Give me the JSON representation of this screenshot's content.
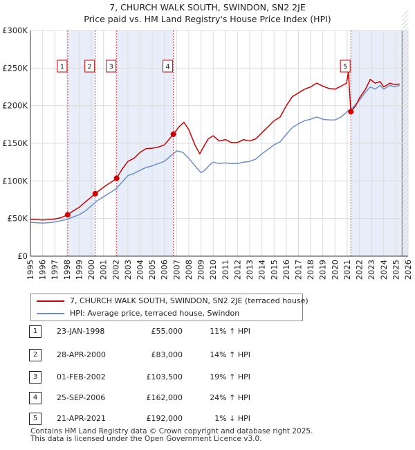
{
  "chart_data": {
    "type": "line",
    "title": "7, CHURCH WALK SOUTH, SWINDON, SN2 2JE",
    "subtitle": "Price paid vs. HM Land Registry's House Price Index (HPI)",
    "xlabel": "",
    "ylabel": "",
    "xlim": [
      1995,
      2026
    ],
    "ylim": [
      0,
      300000
    ],
    "grid": true,
    "y_ticks": [
      {
        "value": 0,
        "label": "£0"
      },
      {
        "value": 50000,
        "label": "£50K"
      },
      {
        "value": 100000,
        "label": "£100K"
      },
      {
        "value": 150000,
        "label": "£150K"
      },
      {
        "value": 200000,
        "label": "£200K"
      },
      {
        "value": 250000,
        "label": "£250K"
      },
      {
        "value": 300000,
        "label": "£300K"
      }
    ],
    "x_ticks": [
      "1995",
      "1996",
      "1997",
      "1998",
      "1999",
      "2000",
      "2001",
      "2002",
      "2003",
      "2004",
      "2005",
      "2006",
      "2007",
      "2008",
      "2009",
      "2010",
      "2011",
      "2012",
      "2013",
      "2014",
      "2015",
      "2016",
      "2017",
      "2018",
      "2019",
      "2020",
      "2021",
      "2022",
      "2023",
      "2024",
      "2025",
      "2026"
    ],
    "series": [
      {
        "name": "7, CHURCH WALK SOUTH, SWINDON, SN2 2JE (terraced house)",
        "color": "#cc0000",
        "x": [
          1995.0,
          1995.5,
          1996.0,
          1996.5,
          1997.0,
          1997.5,
          1998.06,
          1998.5,
          1999.0,
          1999.5,
          2000.32,
          2000.7,
          2001.2,
          2001.6,
          2002.08,
          2002.5,
          2003.0,
          2003.5,
          2004.0,
          2004.5,
          2005.0,
          2005.5,
          2006.0,
          2006.73,
          2007.2,
          2007.6,
          2008.0,
          2008.5,
          2008.9,
          2009.2,
          2009.6,
          2010.0,
          2010.5,
          2011.0,
          2011.5,
          2012.0,
          2012.5,
          2013.0,
          2013.5,
          2014.0,
          2014.5,
          2015.0,
          2015.5,
          2016.0,
          2016.5,
          2017.0,
          2017.5,
          2018.0,
          2018.5,
          2019.0,
          2019.5,
          2020.0,
          2020.5,
          2020.95,
          2021.1,
          2021.3,
          2021.7,
          2022.0,
          2022.5,
          2022.9,
          2023.3,
          2023.7,
          2024.0,
          2024.5,
          2024.9,
          2025.3
        ],
        "y": [
          49000,
          48500,
          48000,
          48500,
          49500,
          51000,
          55000,
          60000,
          65000,
          72000,
          83000,
          88000,
          94000,
          98000,
          103500,
          115000,
          126000,
          130000,
          138000,
          143000,
          143500,
          145000,
          148000,
          162000,
          172000,
          178000,
          168000,
          148000,
          136000,
          145000,
          156000,
          160000,
          153000,
          155000,
          151000,
          151000,
          155000,
          153000,
          156000,
          164000,
          172000,
          180000,
          185000,
          200000,
          212000,
          217000,
          222000,
          225000,
          230000,
          226000,
          223000,
          222000,
          226000,
          230000,
          245000,
          192000,
          200000,
          210000,
          222000,
          235000,
          230000,
          232000,
          225000,
          230000,
          228000,
          229000
        ]
      },
      {
        "name": "HPI: Average price, terraced house, Swindon",
        "color": "#6a8fc7",
        "x": [
          1995.0,
          1995.5,
          1996.0,
          1996.5,
          1997.0,
          1997.5,
          1998.0,
          1998.5,
          1999.0,
          1999.5,
          2000.0,
          2000.5,
          2001.0,
          2001.5,
          2002.0,
          2002.5,
          2003.0,
          2003.5,
          2004.0,
          2004.5,
          2005.0,
          2005.5,
          2006.0,
          2006.5,
          2007.0,
          2007.5,
          2008.0,
          2008.5,
          2009.0,
          2009.3,
          2009.7,
          2010.0,
          2010.5,
          2011.0,
          2011.5,
          2012.0,
          2012.5,
          2013.0,
          2013.5,
          2014.0,
          2014.5,
          2015.0,
          2015.5,
          2016.0,
          2016.5,
          2017.0,
          2017.5,
          2018.0,
          2018.5,
          2019.0,
          2019.5,
          2020.0,
          2020.5,
          2021.0,
          2021.5,
          2022.0,
          2022.5,
          2022.9,
          2023.3,
          2023.7,
          2024.0,
          2024.5,
          2024.9,
          2025.3
        ],
        "y": [
          45000,
          44500,
          44000,
          44500,
          45500,
          47000,
          49000,
          52000,
          55000,
          60000,
          67000,
          74000,
          79000,
          84000,
          89000,
          98000,
          107000,
          110000,
          114000,
          118000,
          120000,
          123000,
          126000,
          133000,
          140000,
          138000,
          130000,
          120000,
          111000,
          114000,
          121000,
          125000,
          123000,
          124000,
          123000,
          123000,
          125000,
          126000,
          129000,
          136000,
          142000,
          148000,
          152000,
          162000,
          171000,
          176000,
          180000,
          182000,
          185000,
          182000,
          181000,
          181000,
          185000,
          192000,
          198000,
          207000,
          218000,
          225000,
          222000,
          227000,
          222000,
          227000,
          225000,
          227000
        ]
      }
    ],
    "sales": [
      {
        "num": "1",
        "x": 1998.06,
        "y": 55000,
        "date": "23-JAN-1998",
        "price": "£55,000",
        "hpi": "11% ↑ HPI"
      },
      {
        "num": "2",
        "x": 2000.32,
        "y": 83000,
        "date": "28-APR-2000",
        "price": "£83,000",
        "hpi": "14% ↑ HPI"
      },
      {
        "num": "3",
        "x": 2002.08,
        "y": 103500,
        "date": "01-FEB-2002",
        "price": "£103,500",
        "hpi": "19% ↑ HPI"
      },
      {
        "num": "4",
        "x": 2006.73,
        "y": 162000,
        "date": "25-SEP-2006",
        "price": "£162,000",
        "hpi": "24% ↑ HPI"
      },
      {
        "num": "5",
        "x": 2021.3,
        "y": 192000,
        "date": "21-APR-2021",
        "price": "£192,000",
        "hpi": "1% ↓ HPI"
      }
    ],
    "future_start": 2025.5
  },
  "colors": {
    "property_line": "#cc0000",
    "hpi_line": "#6a8fc7",
    "sale_shade": "#e8eef9",
    "grid": "#dcdcdc"
  },
  "footer": {
    "line1": "Contains HM Land Registry data © Crown copyright and database right 2025.",
    "line2": "This data is licensed under the Open Government Licence v3.0."
  }
}
